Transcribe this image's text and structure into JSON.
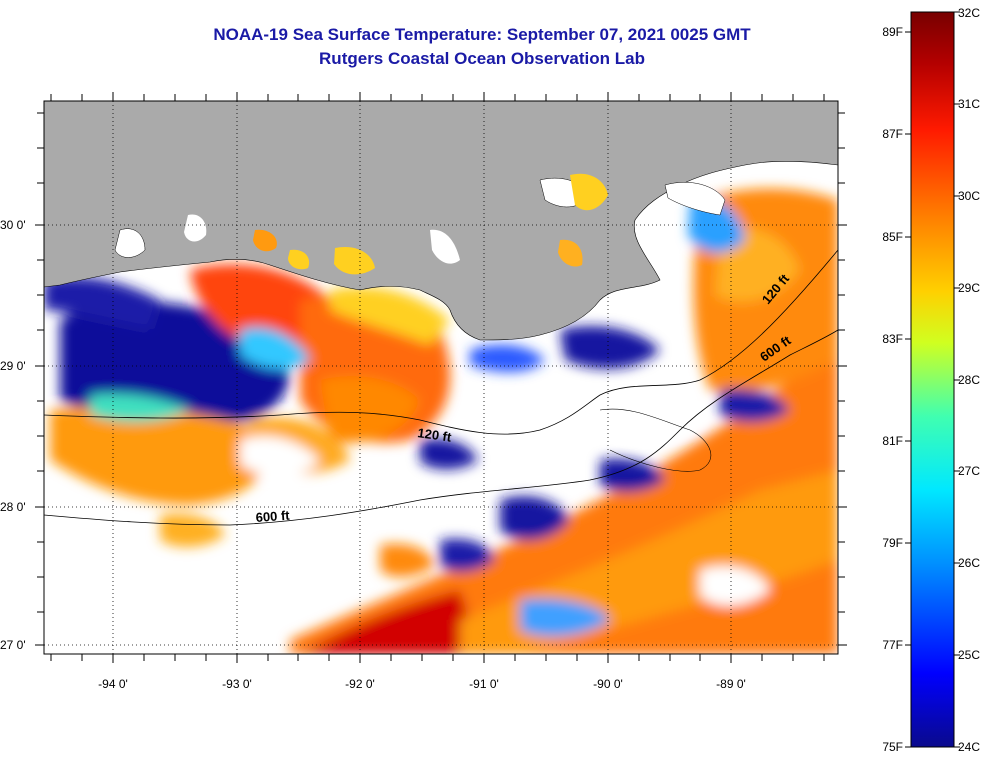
{
  "header": {
    "title": "NOAA-19 Sea Surface Temperature:  September 07, 2021 0025 GMT",
    "subtitle": "Rutgers Coastal Ocean Observation Lab"
  },
  "map": {
    "lon_ticks": [
      "-94 0'",
      "-93 0'",
      "-92 0'",
      "-91 0'",
      "-90 0'",
      "-89 0'"
    ],
    "lat_ticks": [
      "30 0'",
      "29 0'",
      "28 0'",
      "27 0'"
    ],
    "depth_labels": [
      "120 ft",
      "120 ft",
      "600 ft",
      "600 ft"
    ],
    "colors": {
      "land": "#aaaaaa",
      "cloud": "#ffffff"
    }
  },
  "colorbar": {
    "fahrenheit": [
      "89F",
      "87F",
      "85F",
      "83F",
      "81F",
      "79F",
      "77F",
      "75F"
    ],
    "celsius": [
      "32C",
      "31C",
      "30C",
      "29C",
      "28C",
      "27C",
      "26C",
      "25C",
      "24C"
    ],
    "stops": [
      "#0a0a8c",
      "#0000ff",
      "#0090ff",
      "#00e8ff",
      "#40ffb0",
      "#d0ff20",
      "#ffd000",
      "#ff8000",
      "#ff1a00",
      "#b40000",
      "#780000"
    ]
  }
}
